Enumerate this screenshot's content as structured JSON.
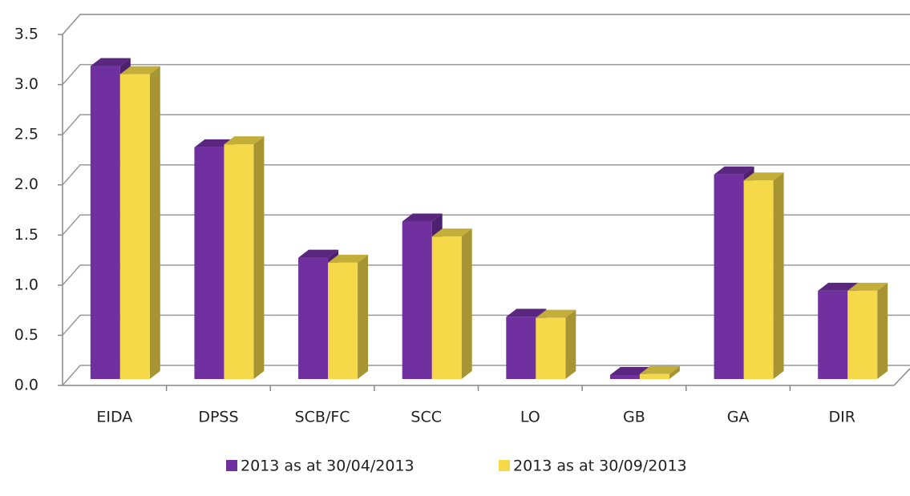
{
  "chart_data": {
    "type": "bar3d",
    "categories": [
      "EIDA",
      "DPSS",
      "SCB/FC",
      "SCC",
      "LO",
      "GB",
      "GA",
      "DIR"
    ],
    "series": [
      {
        "name": "2013 as at 30/04/2013",
        "color": "#7030a0",
        "values": [
          3.12,
          2.31,
          1.21,
          1.57,
          0.62,
          0.04,
          2.04,
          0.88
        ]
      },
      {
        "name": "2013 as at 30/09/2013",
        "color": "#f5d949",
        "values": [
          3.04,
          2.34,
          1.16,
          1.42,
          0.61,
          0.05,
          1.98,
          0.88
        ]
      }
    ],
    "ylim": [
      0,
      3.5
    ],
    "yticks": [
      {
        "value": 0,
        "label": "0.0"
      },
      0.5,
      {
        "value": 1,
        "label": "1.0"
      },
      1.5,
      {
        "value": 2,
        "label": "2.0"
      },
      2.5,
      {
        "value": 3,
        "label": "3.0"
      },
      3.5
    ],
    "grid": true,
    "legend": "bottom"
  }
}
